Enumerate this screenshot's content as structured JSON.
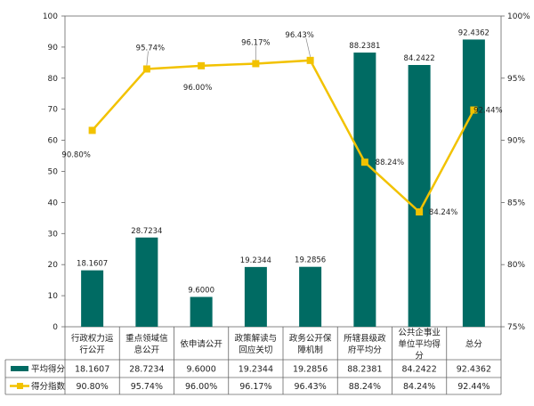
{
  "chart_data": {
    "type": "bar+line",
    "categories": [
      [
        "行政权力运",
        "行公开"
      ],
      [
        "重点领域信",
        "息公开"
      ],
      [
        "依申请公开"
      ],
      [
        "政策解读与",
        "回应关切"
      ],
      [
        "政务公开保",
        "障机制"
      ],
      [
        "所辖县级政",
        "府平均分"
      ],
      [
        "公共企事业",
        "单位平均得",
        "分"
      ],
      [
        "总分"
      ]
    ],
    "left_axis": {
      "ylim": [
        0,
        100
      ],
      "ticks": [
        "0",
        "10",
        "20",
        "30",
        "40",
        "50",
        "60",
        "70",
        "80",
        "90",
        "100"
      ]
    },
    "right_axis": {
      "ylim": [
        75,
        100
      ],
      "ticks": [
        "75%",
        "80%",
        "85%",
        "90%",
        "95%",
        "100%"
      ]
    },
    "series": [
      {
        "name": "平均得分",
        "type": "bar",
        "axis": "left",
        "color": "#006b63",
        "values": [
          18.1607,
          28.7234,
          9.6,
          19.2344,
          19.2856,
          88.2381,
          84.2422,
          92.4362
        ],
        "labels": [
          "18.1607",
          "28.7234",
          "9.6000",
          "19.2344",
          "19.2856",
          "88.2381",
          "84.2422",
          "92.4362"
        ]
      },
      {
        "name": "得分指数",
        "type": "line",
        "axis": "right",
        "color": "#f2c200",
        "values": [
          90.8,
          95.74,
          96.0,
          96.17,
          96.43,
          88.24,
          84.24,
          92.44
        ],
        "labels": [
          "90.80%",
          "95.74%",
          "96.00%",
          "96.17%",
          "96.43%",
          "88.24%",
          "84.24%",
          "92.44%"
        ]
      }
    ]
  }
}
